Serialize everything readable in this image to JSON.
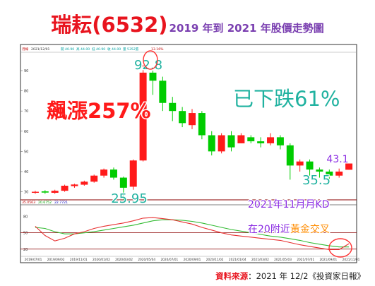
{
  "header": {
    "stock": "瑞耘(6532)",
    "subtitle": "2019 年到 2021 年股價走勢圖"
  },
  "footer": {
    "label": "資料來源",
    "text": "：2021 年 12/2《投資家日報》"
  },
  "info_bar": {
    "panel": "月線",
    "date": "2021/12/01",
    "open": "開 40.90",
    "high": "高 44.00",
    "low": "低 40.90",
    "close": "收 44.00",
    "volume": "量 5352張",
    "extra": "13.16%"
  },
  "kd_readout": [
    "35.0563",
    "20.6752",
    "22.7721"
  ],
  "annotations": {
    "high": "92.8",
    "low_start": "25.95",
    "low_end": "35.5",
    "last": "43.1",
    "rise": "飆漲257%",
    "fall": "已下跌61%",
    "kd_title": "2021年11月月KD",
    "kd_note_prefix": "在20附近",
    "kd_note_em": "黃金交叉"
  },
  "colors": {
    "up": "#ff1a1a",
    "down": "#00cc00",
    "k_line": "#e83030",
    "d_line": "#33bb33",
    "ref_line": "#8b0000",
    "annotation": "#20b2a0",
    "title_red": "#e8141e",
    "title_purple": "#7a3fb0",
    "kd_title": "#8a2be2",
    "gold": "#ff8c00",
    "circle": "#ff3333"
  },
  "chart_data": {
    "type": "candlestick",
    "price_panel": {
      "yticks": [
        30,
        40,
        50,
        60,
        70,
        80,
        90
      ],
      "ylim": [
        26,
        97
      ],
      "reference_line": 26,
      "candles": [
        {
          "o": 29.5,
          "c": 30.0,
          "h": 30.5,
          "l": 29.0
        },
        {
          "o": 30.2,
          "c": 29.6,
          "h": 30.8,
          "l": 29.0
        },
        {
          "o": 29.5,
          "c": 30.5,
          "h": 31.0,
          "l": 29.0
        },
        {
          "o": 30.5,
          "c": 33.0,
          "h": 33.5,
          "l": 30.0
        },
        {
          "o": 32.8,
          "c": 33.6,
          "h": 34.0,
          "l": 32.0
        },
        {
          "o": 33.5,
          "c": 35.0,
          "h": 35.5,
          "l": 33.0
        },
        {
          "o": 35.0,
          "c": 38.0,
          "h": 38.5,
          "l": 34.5
        },
        {
          "o": 38.0,
          "c": 41.0,
          "h": 41.5,
          "l": 37.0
        },
        {
          "o": 41.0,
          "c": 37.0,
          "h": 42.0,
          "l": 36.0
        },
        {
          "o": 37.0,
          "c": 32.0,
          "h": 37.5,
          "l": 26.0
        },
        {
          "o": 32.5,
          "c": 45.5,
          "h": 46.0,
          "l": 31.0
        },
        {
          "o": 45.5,
          "c": 89.0,
          "h": 92.8,
          "l": 45.0
        },
        {
          "o": 89.0,
          "c": 85.0,
          "h": 90.0,
          "l": 78.0
        },
        {
          "o": 85.0,
          "c": 74.0,
          "h": 87.0,
          "l": 70.0
        },
        {
          "o": 74.0,
          "c": 70.0,
          "h": 77.0,
          "l": 65.0
        },
        {
          "o": 70.0,
          "c": 64.0,
          "h": 72.0,
          "l": 62.0
        },
        {
          "o": 63.0,
          "c": 69.0,
          "h": 71.0,
          "l": 61.0
        },
        {
          "o": 69.0,
          "c": 58.0,
          "h": 70.0,
          "l": 56.0
        },
        {
          "o": 58.0,
          "c": 50.0,
          "h": 60.0,
          "l": 48.0
        },
        {
          "o": 50.0,
          "c": 58.0,
          "h": 59.0,
          "l": 49.0
        },
        {
          "o": 58.0,
          "c": 52.0,
          "h": 60.0,
          "l": 50.0
        },
        {
          "o": 54.0,
          "c": 58.0,
          "h": 59.0,
          "l": 54.0
        },
        {
          "o": 57.0,
          "c": 55.0,
          "h": 58.0,
          "l": 54.0
        },
        {
          "o": 55.0,
          "c": 54.0,
          "h": 57.0,
          "l": 52.0
        },
        {
          "o": 54.0,
          "c": 57.0,
          "h": 59.0,
          "l": 53.0
        },
        {
          "o": 57.0,
          "c": 53.0,
          "h": 58.0,
          "l": 51.0
        },
        {
          "o": 53.0,
          "c": 43.0,
          "h": 54.0,
          "l": 36.0
        },
        {
          "o": 43.0,
          "c": 45.0,
          "h": 46.0,
          "l": 40.0
        },
        {
          "o": 45.0,
          "c": 41.0,
          "h": 46.0,
          "l": 38.0
        },
        {
          "o": 41.0,
          "c": 40.0,
          "h": 42.0,
          "l": 37.0
        },
        {
          "o": 40.0,
          "c": 38.0,
          "h": 41.0,
          "l": 35.5
        },
        {
          "o": 38.0,
          "c": 40.0,
          "h": 41.5,
          "l": 37.0
        },
        {
          "o": 40.9,
          "c": 44.0,
          "h": 44.0,
          "l": 40.9
        }
      ]
    },
    "kd_panel": {
      "yticks": [
        20,
        50,
        80
      ],
      "ylim": [
        8,
        95
      ],
      "reference_lines": [
        20,
        50
      ],
      "k": [
        62,
        45,
        35,
        40,
        48,
        52,
        58,
        62,
        65,
        68,
        72,
        77,
        78,
        76,
        74,
        70,
        66,
        60,
        55,
        50,
        46,
        44,
        42,
        40,
        38,
        36,
        32,
        28,
        25,
        22,
        19,
        19,
        30
      ],
      "d": [
        60,
        58,
        52,
        48,
        48,
        50,
        52,
        55,
        58,
        61,
        64,
        68,
        72,
        74,
        74,
        73,
        71,
        68,
        64,
        60,
        56,
        53,
        50,
        47,
        44,
        42,
        39,
        36,
        32,
        29,
        26,
        24,
        24
      ]
    },
    "x_tick_labels": [
      "2019/07/01",
      "2019/09/02",
      "2019/11/01",
      "2020/01/02",
      "2020/03/02",
      "2020/05/04",
      "2020/07/01",
      "2020/09/01",
      "2020/11/02",
      "2021/01/04",
      "2021/03/02",
      "2021/05/03",
      "2021/07/01",
      "2021/09/01",
      "2021/11/01"
    ]
  }
}
